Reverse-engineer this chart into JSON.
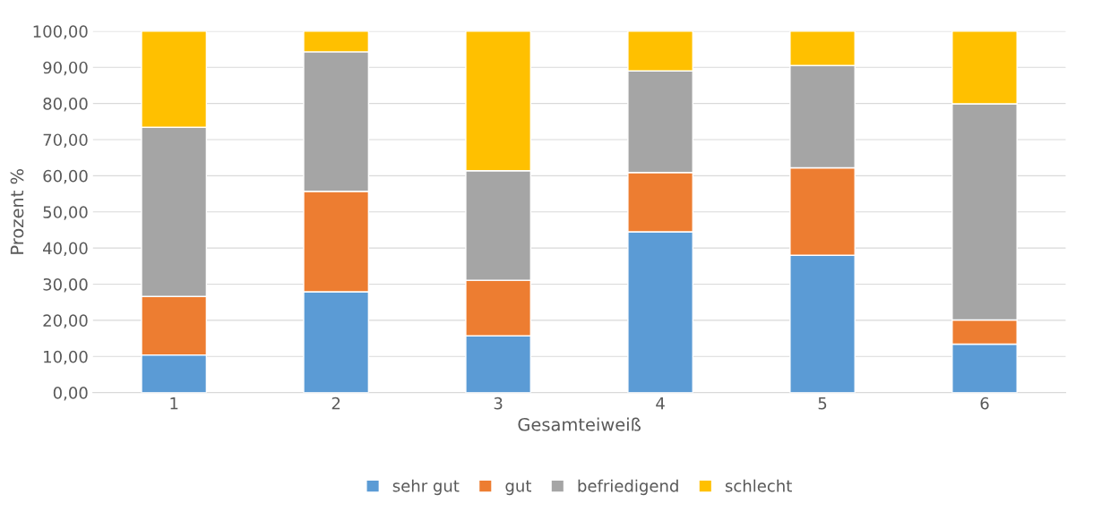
{
  "chart_data": {
    "type": "bar",
    "stacked": true,
    "xlabel": "Gesamteiweiß",
    "ylabel": "Prozent %",
    "categories": [
      "1",
      "2",
      "3",
      "4",
      "5",
      "6"
    ],
    "series": [
      {
        "name": "sehr gut",
        "color": "#5b9bd5",
        "values": [
          10.4,
          27.9,
          15.7,
          44.5,
          38.0,
          13.4
        ]
      },
      {
        "name": "gut",
        "color": "#ed7d31",
        "values": [
          16.2,
          27.8,
          15.4,
          16.4,
          24.2,
          6.7
        ]
      },
      {
        "name": "befriedigend",
        "color": "#a5a5a5",
        "values": [
          46.8,
          38.6,
          30.3,
          28.1,
          28.3,
          59.8
        ]
      },
      {
        "name": "schlecht",
        "color": "#ffc000",
        "values": [
          26.6,
          5.7,
          38.6,
          11.0,
          9.5,
          20.1
        ]
      }
    ],
    "ylim": [
      0,
      100
    ],
    "yticks": [
      {
        "value": 0,
        "label": "0,00"
      },
      {
        "value": 10,
        "label": "10,00"
      },
      {
        "value": 20,
        "label": "20,00"
      },
      {
        "value": 30,
        "label": "30,00"
      },
      {
        "value": 40,
        "label": "40,00"
      },
      {
        "value": 50,
        "label": "50,00"
      },
      {
        "value": 60,
        "label": "60,00"
      },
      {
        "value": 70,
        "label": "70,00"
      },
      {
        "value": 80,
        "label": "80,00"
      },
      {
        "value": 90,
        "label": "90,00"
      },
      {
        "value": 100,
        "label": "100,00"
      }
    ],
    "grid": "y",
    "legend": "bottom"
  }
}
